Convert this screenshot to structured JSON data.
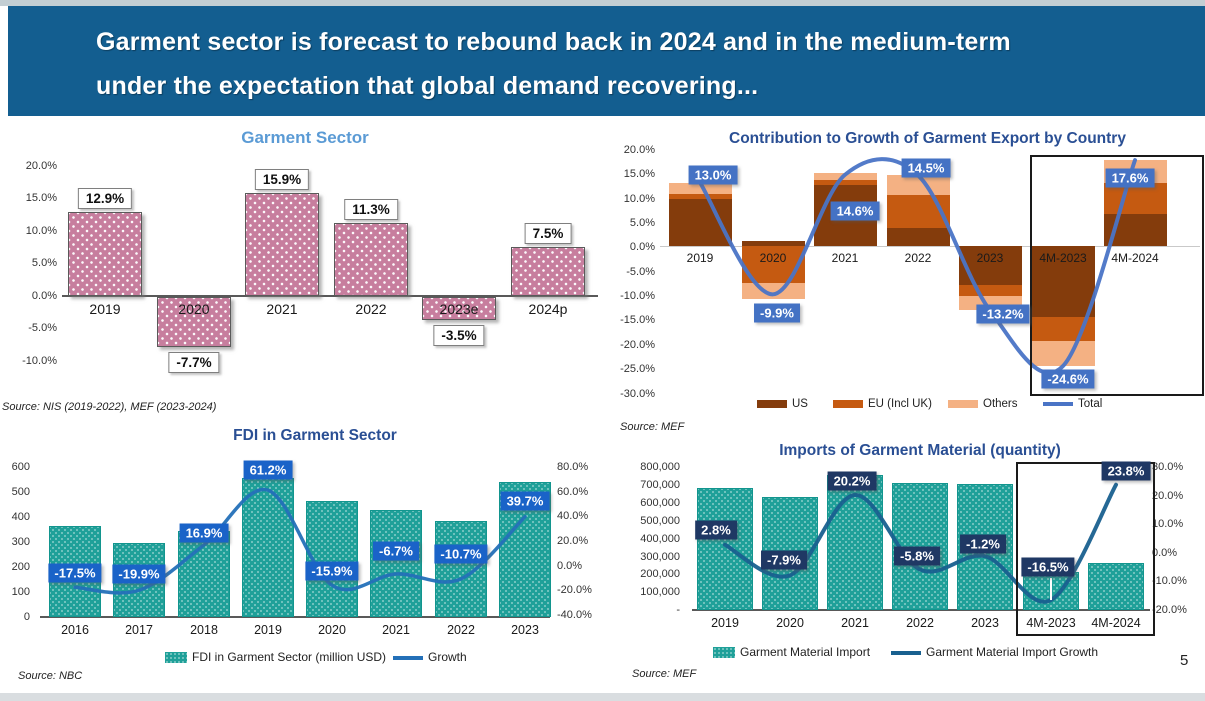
{
  "slide": {
    "title_line1": "Garment sector is forecast to rebound back in 2024 and in the medium-term",
    "title_line2": "under the expectation that global demand recovering...",
    "page_number": "5"
  },
  "colors": {
    "header_bg": "#135E90",
    "top_strip": "#c3ced3",
    "bottom_strip": "#d9dde0",
    "chart1_title": "#5B9BD5",
    "chart_title_dark": "#2A4F94",
    "pink_bar": "#C77E9E",
    "teal_bar": "#1FA099",
    "us": "#843C0C",
    "eu": "#C55A11",
    "others": "#F4B183",
    "total_line": "#4A74C6",
    "growth_line": "#2470B8",
    "import_line": "#19608F",
    "label_blue": "#1A63C8",
    "label_slate": "#4472C4",
    "label_navy": "#1F3864"
  },
  "chart_data": [
    {
      "type": "bar",
      "title": "Garment Sector",
      "categories": [
        "2019",
        "2020",
        "2021",
        "2022",
        "2023e",
        "2024p"
      ],
      "values": [
        12.9,
        -7.7,
        15.9,
        11.3,
        -3.5,
        7.5
      ],
      "labels": [
        "12.9%",
        "-7.7%",
        "15.9%",
        "11.3%",
        "-3.5%",
        "7.5%"
      ],
      "yticks": [
        "20.0%",
        "15.0%",
        "10.0%",
        "5.0%",
        "0.0%",
        "-5.0%",
        "-10.0%"
      ],
      "ylim": [
        -10,
        20
      ],
      "source": "Source: NIS (2019-2022), MEF (2023-2024)"
    },
    {
      "type": "stacked-bar-line",
      "title": "Contribution to Growth of Garment Export by Country",
      "categories": [
        "2019",
        "2020",
        "2021",
        "2022",
        "2023",
        "4M-2023",
        "4M-2024"
      ],
      "series": [
        {
          "name": "US",
          "color": "#843C0C",
          "values": [
            9.7,
            1.0,
            12.5,
            3.6,
            -8.0,
            -14.5,
            6.5
          ]
        },
        {
          "name": "EU (Incl UK)",
          "color": "#C55A11",
          "values": [
            0.9,
            -7.6,
            1.0,
            6.9,
            -2.2,
            -5.0,
            6.5
          ]
        },
        {
          "name": "Others",
          "color": "#F4B183",
          "values": [
            2.4,
            -3.3,
            1.5,
            4.0,
            -3.0,
            -5.1,
            4.6
          ]
        }
      ],
      "line": {
        "name": "Total",
        "values": [
          13.0,
          -9.9,
          14.6,
          14.5,
          -13.2,
          -24.6,
          17.6
        ]
      },
      "labels": [
        "13.0%",
        "-9.9%",
        "14.6%",
        "14.5%",
        "-13.2%",
        "-24.6%",
        "17.6%"
      ],
      "yticks": [
        "20.0%",
        "15.0%",
        "10.0%",
        "5.0%",
        "0.0%",
        "-5.0%",
        "-10.0%",
        "-15.0%",
        "-20.0%",
        "-25.0%",
        "-30.0%"
      ],
      "ylim": [
        -30,
        20
      ],
      "highlight": [
        "4M-2023",
        "4M-2024"
      ],
      "source": "Source: MEF"
    },
    {
      "type": "bar-line",
      "title": "FDI in Garment Sector",
      "categories": [
        "2016",
        "2017",
        "2018",
        "2019",
        "2020",
        "2021",
        "2022",
        "2023"
      ],
      "bars": {
        "name": "FDI in Garment Sector (million USD)",
        "values": [
          365,
          295,
          345,
          555,
          465,
          430,
          385,
          540
        ]
      },
      "line": {
        "name": "Growth",
        "values": [
          -17.5,
          -19.9,
          16.9,
          61.2,
          -15.9,
          -6.7,
          -10.7,
          39.7
        ]
      },
      "labels": [
        "-17.5%",
        "-19.9%",
        "16.9%",
        "61.2%",
        "-15.9%",
        "-6.7%",
        "-10.7%",
        "39.7%"
      ],
      "left_yticks": [
        "600",
        "500",
        "400",
        "300",
        "200",
        "100",
        "0"
      ],
      "right_yticks": [
        "80.0%",
        "60.0%",
        "40.0%",
        "20.0%",
        "0.0%",
        "-20.0%",
        "-40.0%"
      ],
      "left_ylim": [
        0,
        600
      ],
      "right_ylim": [
        -40,
        80
      ],
      "source": "Source: NBC"
    },
    {
      "type": "bar-line",
      "title": "Imports of Garment Material (quantity)",
      "categories": [
        "2019",
        "2020",
        "2021",
        "2022",
        "2023",
        "4M-2023",
        "4M-2024"
      ],
      "bars": {
        "name": "Garment Material Import",
        "values": [
          685000,
          630000,
          755000,
          710000,
          705000,
          215000,
          265000
        ]
      },
      "line": {
        "name": "Garment Material Import Growth",
        "values": [
          2.8,
          -7.9,
          20.2,
          -5.8,
          -1.2,
          -16.5,
          23.8
        ]
      },
      "labels": [
        "2.8%",
        "-7.9%",
        "20.2%",
        "-5.8%",
        "-1.2%",
        "-16.5%",
        "23.8%"
      ],
      "left_yticks": [
        "800,000",
        "700,000",
        "600,000",
        "500,000",
        "400,000",
        "300,000",
        "200,000",
        "100,000",
        "-"
      ],
      "right_yticks": [
        "30.0%",
        "20.0%",
        "10.0%",
        "0.0%",
        "-10.0%",
        "-20.0%"
      ],
      "left_ylim": [
        0,
        800000
      ],
      "right_ylim": [
        -20,
        30
      ],
      "highlight": [
        "4M-2023",
        "4M-2024"
      ],
      "source": "Source: MEF"
    }
  ]
}
